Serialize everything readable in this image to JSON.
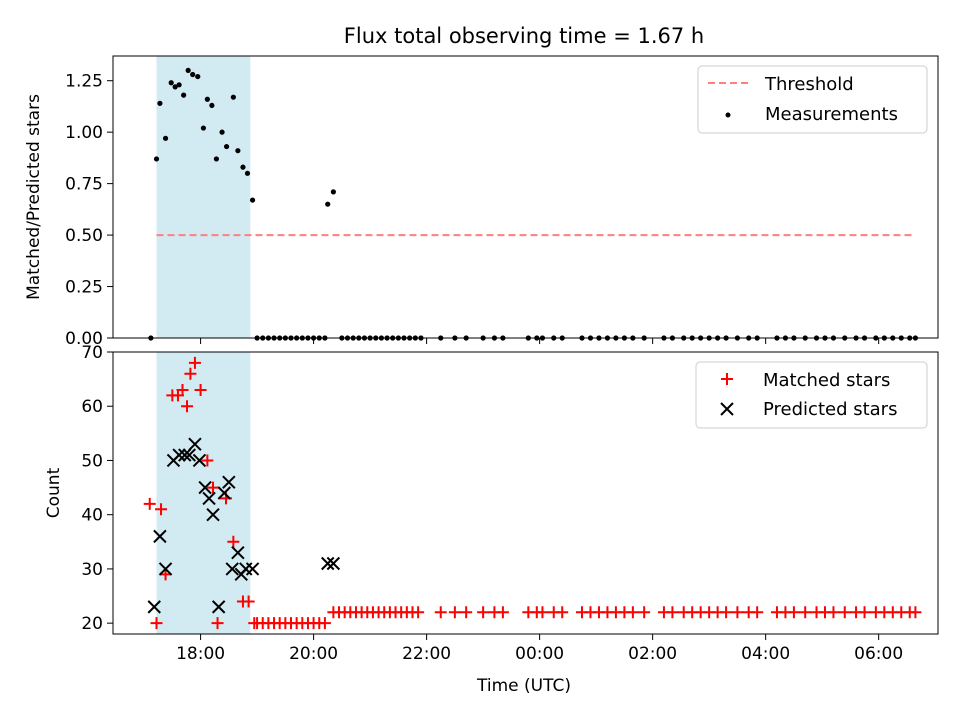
{
  "chart_data": [
    {
      "type": "scatter",
      "title": "Flux total observing time = 1.67 h",
      "xlabel": "",
      "ylabel": "Matched/Predicted stars",
      "xlim": [
        16.45,
        31.05
      ],
      "ylim": [
        0,
        1.37
      ],
      "yticks": [
        0,
        0.25,
        0.5,
        0.75,
        1.0,
        1.25
      ],
      "ytick_labels": [
        "0.00",
        "0.25",
        "0.50",
        "0.75",
        "1.00",
        "1.25"
      ],
      "shaded_span_hours": [
        17.22,
        18.88
      ],
      "shaded_color": "#add8e6",
      "threshold": {
        "name": "Threshold",
        "y": 0.5,
        "x_range": [
          17.22,
          30.65
        ],
        "color": "#ff7f7f"
      },
      "legend": [
        "Threshold",
        "Measurements"
      ],
      "legend_position": "top-right",
      "series": [
        {
          "name": "Measurements",
          "color": "#000000",
          "points": [
            [
              17.12,
              0.0
            ],
            [
              17.22,
              0.87
            ],
            [
              17.28,
              1.14
            ],
            [
              17.38,
              0.97
            ],
            [
              17.48,
              1.24
            ],
            [
              17.55,
              1.22
            ],
            [
              17.62,
              1.23
            ],
            [
              17.7,
              1.18
            ],
            [
              17.78,
              1.3
            ],
            [
              17.86,
              1.28
            ],
            [
              17.95,
              1.27
            ],
            [
              18.05,
              1.02
            ],
            [
              18.12,
              1.16
            ],
            [
              18.2,
              1.13
            ],
            [
              18.28,
              0.87
            ],
            [
              18.38,
              1.0
            ],
            [
              18.46,
              0.93
            ],
            [
              18.58,
              1.17
            ],
            [
              18.66,
              0.91
            ],
            [
              18.75,
              0.83
            ],
            [
              18.83,
              0.8
            ],
            [
              18.92,
              0.67
            ],
            [
              20.25,
              0.65
            ],
            [
              20.35,
              0.71
            ],
            [
              19.0,
              0
            ],
            [
              19.1,
              0
            ],
            [
              19.2,
              0
            ],
            [
              19.3,
              0
            ],
            [
              19.4,
              0
            ],
            [
              19.5,
              0
            ],
            [
              19.6,
              0
            ],
            [
              19.7,
              0
            ],
            [
              19.8,
              0
            ],
            [
              19.9,
              0
            ],
            [
              20.0,
              0
            ],
            [
              20.1,
              0
            ],
            [
              20.2,
              0
            ],
            [
              20.5,
              0
            ],
            [
              20.6,
              0
            ],
            [
              20.7,
              0
            ],
            [
              20.8,
              0
            ],
            [
              20.9,
              0
            ],
            [
              21.0,
              0
            ],
            [
              21.1,
              0
            ],
            [
              21.2,
              0
            ],
            [
              21.3,
              0
            ],
            [
              21.4,
              0
            ],
            [
              21.5,
              0
            ],
            [
              21.6,
              0
            ],
            [
              21.7,
              0
            ],
            [
              21.8,
              0
            ],
            [
              21.9,
              0
            ],
            [
              22.25,
              0
            ],
            [
              22.5,
              0
            ],
            [
              22.7,
              0
            ],
            [
              23.0,
              0
            ],
            [
              23.2,
              0
            ],
            [
              23.35,
              0
            ],
            [
              23.8,
              0
            ],
            [
              23.95,
              0
            ],
            [
              24.05,
              0
            ],
            [
              24.25,
              0
            ],
            [
              24.4,
              0
            ],
            [
              24.75,
              0
            ],
            [
              24.9,
              0
            ],
            [
              25.05,
              0
            ],
            [
              25.2,
              0
            ],
            [
              25.35,
              0
            ],
            [
              25.5,
              0
            ],
            [
              25.65,
              0
            ],
            [
              25.85,
              0
            ],
            [
              26.2,
              0
            ],
            [
              26.35,
              0
            ],
            [
              26.55,
              0
            ],
            [
              26.7,
              0
            ],
            [
              26.85,
              0
            ],
            [
              27.0,
              0
            ],
            [
              27.15,
              0
            ],
            [
              27.3,
              0
            ],
            [
              27.5,
              0
            ],
            [
              27.7,
              0
            ],
            [
              27.85,
              0
            ],
            [
              28.2,
              0
            ],
            [
              28.35,
              0
            ],
            [
              28.5,
              0
            ],
            [
              28.7,
              0
            ],
            [
              28.9,
              0
            ],
            [
              29.05,
              0
            ],
            [
              29.2,
              0
            ],
            [
              29.4,
              0
            ],
            [
              29.6,
              0
            ],
            [
              29.75,
              0
            ],
            [
              29.95,
              0
            ],
            [
              30.1,
              0
            ],
            [
              30.25,
              0
            ],
            [
              30.4,
              0
            ],
            [
              30.55,
              0
            ],
            [
              30.65,
              0
            ]
          ]
        }
      ]
    },
    {
      "type": "scatter",
      "title": "",
      "xlabel": "Time (UTC)",
      "ylabel": "Count",
      "xlim": [
        16.45,
        31.05
      ],
      "ylim": [
        18,
        70
      ],
      "yticks": [
        20,
        30,
        40,
        50,
        60,
        70
      ],
      "ytick_labels": [
        "20",
        "30",
        "40",
        "50",
        "60",
        "70"
      ],
      "xticks_hours": [
        18,
        20,
        22,
        24,
        26,
        28,
        30
      ],
      "xtick_labels": [
        "18:00",
        "20:00",
        "22:00",
        "00:00",
        "02:00",
        "04:00",
        "06:00"
      ],
      "shaded_span_hours": [
        17.22,
        18.88
      ],
      "shaded_color": "#add8e6",
      "legend": [
        "Matched stars",
        "Predicted stars"
      ],
      "legend_position": "top-right",
      "series": [
        {
          "name": "Matched stars",
          "marker": "plus",
          "color": "#ff0000",
          "points": [
            [
              17.1,
              42
            ],
            [
              17.22,
              20
            ],
            [
              17.3,
              41
            ],
            [
              17.38,
              29
            ],
            [
              17.5,
              62
            ],
            [
              17.6,
              62
            ],
            [
              17.68,
              63
            ],
            [
              17.76,
              60
            ],
            [
              17.82,
              66
            ],
            [
              17.9,
              68
            ],
            [
              18.0,
              63
            ],
            [
              18.12,
              50
            ],
            [
              18.22,
              45
            ],
            [
              18.3,
              20
            ],
            [
              18.45,
              43
            ],
            [
              18.58,
              35
            ],
            [
              18.75,
              24
            ],
            [
              18.85,
              24
            ],
            [
              18.95,
              20
            ],
            [
              19.0,
              20
            ],
            [
              19.1,
              20
            ],
            [
              19.2,
              20
            ],
            [
              19.3,
              20
            ],
            [
              19.4,
              20
            ],
            [
              19.5,
              20
            ],
            [
              19.6,
              20
            ],
            [
              19.7,
              20
            ],
            [
              19.8,
              20
            ],
            [
              19.9,
              20
            ],
            [
              20.0,
              20
            ],
            [
              20.1,
              20
            ],
            [
              20.2,
              20
            ],
            [
              20.35,
              22
            ],
            [
              20.45,
              22
            ],
            [
              20.55,
              22
            ],
            [
              20.65,
              22
            ],
            [
              20.75,
              22
            ],
            [
              20.85,
              22
            ],
            [
              20.95,
              22
            ],
            [
              21.05,
              22
            ],
            [
              21.15,
              22
            ],
            [
              21.25,
              22
            ],
            [
              21.35,
              22
            ],
            [
              21.45,
              22
            ],
            [
              21.55,
              22
            ],
            [
              21.65,
              22
            ],
            [
              21.75,
              22
            ],
            [
              21.85,
              22
            ],
            [
              22.25,
              22
            ],
            [
              22.5,
              22
            ],
            [
              22.7,
              22
            ],
            [
              23.0,
              22
            ],
            [
              23.2,
              22
            ],
            [
              23.35,
              22
            ],
            [
              23.8,
              22
            ],
            [
              23.95,
              22
            ],
            [
              24.05,
              22
            ],
            [
              24.25,
              22
            ],
            [
              24.4,
              22
            ],
            [
              24.75,
              22
            ],
            [
              24.9,
              22
            ],
            [
              25.05,
              22
            ],
            [
              25.2,
              22
            ],
            [
              25.35,
              22
            ],
            [
              25.5,
              22
            ],
            [
              25.65,
              22
            ],
            [
              25.85,
              22
            ],
            [
              26.2,
              22
            ],
            [
              26.35,
              22
            ],
            [
              26.55,
              22
            ],
            [
              26.7,
              22
            ],
            [
              26.85,
              22
            ],
            [
              27.0,
              22
            ],
            [
              27.15,
              22
            ],
            [
              27.3,
              22
            ],
            [
              27.5,
              22
            ],
            [
              27.7,
              22
            ],
            [
              27.85,
              22
            ],
            [
              28.2,
              22
            ],
            [
              28.35,
              22
            ],
            [
              28.5,
              22
            ],
            [
              28.7,
              22
            ],
            [
              28.9,
              22
            ],
            [
              29.05,
              22
            ],
            [
              29.2,
              22
            ],
            [
              29.4,
              22
            ],
            [
              29.6,
              22
            ],
            [
              29.75,
              22
            ],
            [
              29.95,
              22
            ],
            [
              30.1,
              22
            ],
            [
              30.25,
              22
            ],
            [
              30.4,
              22
            ],
            [
              30.55,
              22
            ],
            [
              30.65,
              22
            ]
          ]
        },
        {
          "name": "Predicted stars",
          "marker": "x",
          "color": "#000000",
          "points": [
            [
              17.18,
              23
            ],
            [
              17.28,
              36
            ],
            [
              17.38,
              30
            ],
            [
              17.52,
              50
            ],
            [
              17.62,
              51
            ],
            [
              17.72,
              51
            ],
            [
              17.8,
              51
            ],
            [
              17.9,
              53
            ],
            [
              17.98,
              50
            ],
            [
              18.08,
              45
            ],
            [
              18.15,
              43
            ],
            [
              18.22,
              40
            ],
            [
              18.32,
              23
            ],
            [
              18.42,
              44
            ],
            [
              18.5,
              46
            ],
            [
              18.56,
              30
            ],
            [
              18.66,
              33
            ],
            [
              18.72,
              29
            ],
            [
              18.8,
              30
            ],
            [
              18.92,
              30
            ],
            [
              20.25,
              31
            ],
            [
              20.35,
              31
            ]
          ]
        }
      ]
    }
  ]
}
